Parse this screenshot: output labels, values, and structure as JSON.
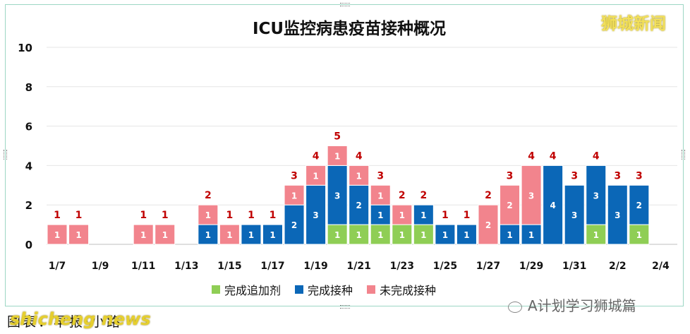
{
  "header": {
    "brand": "狮城新闻"
  },
  "footer": {
    "caption": "图表：早报·小路",
    "watermark_news": "shicheng news",
    "watermark_source": "A计划学习狮城篇"
  },
  "colors": {
    "booster": "#8fce55",
    "complete": "#0b67b7",
    "incomplete": "#f2848d"
  },
  "chart_data": {
    "type": "bar",
    "stacked": true,
    "title": "ICU监控病患疫苗接种概况",
    "xlabel": "",
    "ylabel": "",
    "ylim": [
      0,
      10
    ],
    "yticks": [
      0,
      2,
      4,
      6,
      8,
      10
    ],
    "grid": true,
    "legend_position": "bottom",
    "x_tick_labels": [
      "1/7",
      "1/9",
      "1/11",
      "1/13",
      "1/15",
      "1/17",
      "1/19",
      "1/21",
      "1/23",
      "1/25",
      "1/27",
      "1/29",
      "1/31",
      "2/2",
      "2/4"
    ],
    "categories": [
      "1/7",
      "1/8",
      "1/9",
      "1/10",
      "1/11",
      "1/12",
      "1/13",
      "1/14",
      "1/15",
      "1/16",
      "1/17",
      "1/18",
      "1/19",
      "1/20",
      "1/21",
      "1/22",
      "1/23",
      "1/24",
      "1/25",
      "1/26",
      "1/27",
      "1/28",
      "1/29",
      "1/30",
      "1/31",
      "2/1",
      "2/2",
      "2/3"
    ],
    "series": [
      {
        "name": "完成追加剂",
        "values": [
          0,
          0,
          0,
          0,
          0,
          0,
          0,
          0,
          0,
          0,
          0,
          0,
          0,
          1,
          1,
          1,
          1,
          1,
          0,
          0,
          0,
          0,
          0,
          0,
          0,
          1,
          0,
          1
        ]
      },
      {
        "name": "完成接种",
        "values": [
          0,
          0,
          0,
          0,
          0,
          0,
          0,
          1,
          0,
          1,
          1,
          2,
          3,
          3,
          2,
          1,
          0,
          1,
          1,
          1,
          0,
          1,
          1,
          4,
          3,
          3,
          3,
          2
        ]
      },
      {
        "name": "未完成接种",
        "values": [
          1,
          1,
          0,
          0,
          1,
          1,
          0,
          1,
          1,
          0,
          0,
          1,
          1,
          1,
          1,
          1,
          1,
          0,
          0,
          0,
          2,
          2,
          3,
          0,
          0,
          0,
          0,
          0
        ]
      }
    ],
    "totals": [
      1,
      1,
      0,
      0,
      1,
      1,
      0,
      2,
      1,
      1,
      1,
      3,
      4,
      5,
      4,
      3,
      2,
      2,
      1,
      1,
      2,
      3,
      4,
      4,
      3,
      4,
      3,
      3
    ]
  }
}
